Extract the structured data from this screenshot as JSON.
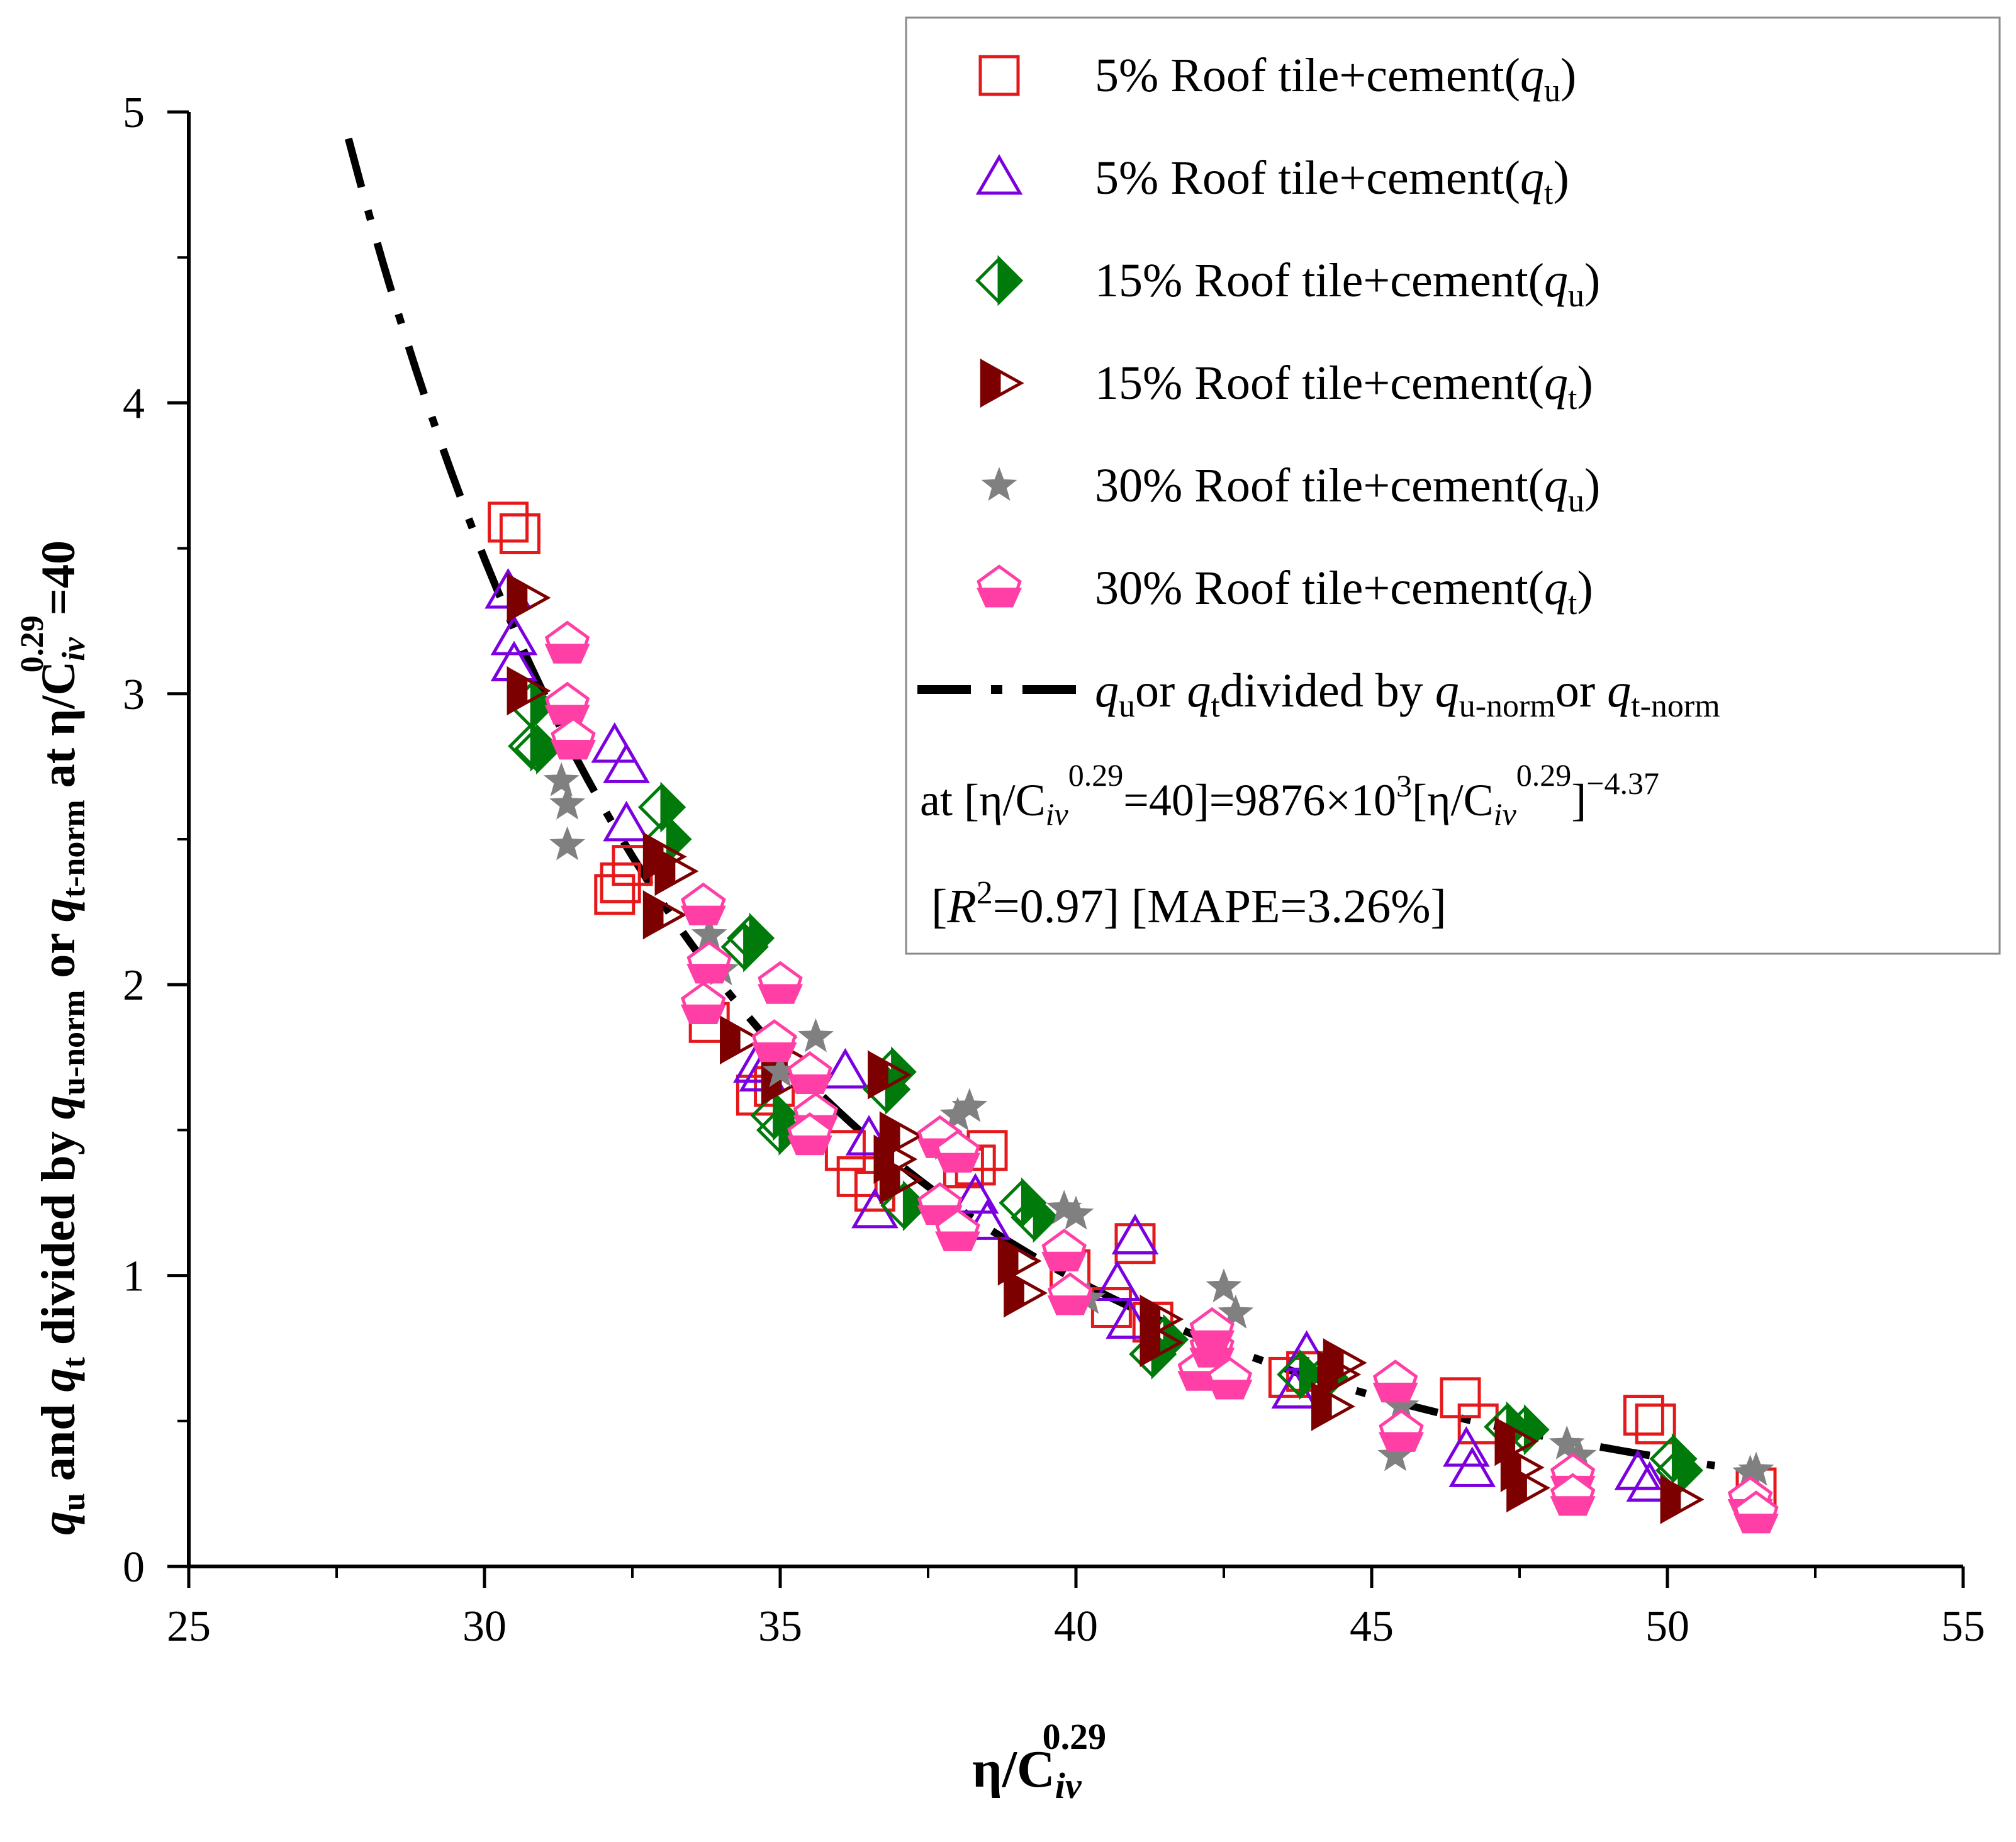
{
  "colors": {
    "s5u": "#e5191b",
    "s5t": "#7b00e0",
    "s15u": "#007a0a",
    "s15t": "#7d0000",
    "s30u": "#808080",
    "s30t": "#ff3fa6",
    "fit": "#000000"
  },
  "chart_data": {
    "type": "scatter",
    "xlabel": "η/C",
    "xlabel_sub": "iv",
    "xlabel_sup": "0.29",
    "ylabel": {
      "p1": "q",
      "p1_sub": "u",
      "p2": " and ",
      "p3": "q",
      "p3_sub": "t",
      "p4": " divided by ",
      "p5": "q",
      "p5_sub": "u-norm",
      "p6": " or ",
      "p7": "q",
      "p7_sub": "t-norm",
      "p8": " at η/C",
      "p8_sub": "iv",
      "p8_sup": "0.29",
      "p9": "=40"
    },
    "xlim": [
      25,
      55
    ],
    "ylim": [
      0,
      5
    ],
    "x_ticks": [
      "25",
      "30",
      "35",
      "40",
      "45",
      "50",
      "55"
    ],
    "y_ticks": [
      "0",
      "1",
      "2",
      "3",
      "4",
      "5"
    ],
    "legend": {
      "position": "top-right",
      "entries": [
        {
          "key": "s5u",
          "text": "5% Roof tile+cement(",
          "q": "q",
          "sub": "u",
          "close": ")"
        },
        {
          "key": "s5t",
          "text": "5% Roof tile+cement(",
          "q": "q",
          "sub": "t",
          "close": ")"
        },
        {
          "key": "s15u",
          "text": "15% Roof tile+cement(",
          "q": "q",
          "sub": "u",
          "close": ")"
        },
        {
          "key": "s15t",
          "text": "15% Roof tile+cement(",
          "q": "q",
          "sub": "t",
          "close": ")"
        },
        {
          "key": "s30u",
          "text": "30% Roof tile+cement(",
          "q": "q",
          "sub": "u",
          "close": ")"
        },
        {
          "key": "s30t",
          "text": "30% Roof tile+cement(",
          "q": "q",
          "sub": "t",
          "close": ")"
        }
      ],
      "fit_entry": {
        "a": "q",
        "a_sub": "u",
        "b": "or ",
        "c": "q",
        "c_sub": "t",
        "d": "divided by ",
        "e": "q",
        "e_sub": "u-norm",
        "f": "or ",
        "g": "q",
        "g_sub": "t-norm"
      },
      "equation": {
        "a": "at [η/C",
        "a_sub": "iv",
        "a_sup": "0.29",
        "b": "=40]=9876×10",
        "b_sup": "3",
        "c": "[η/C",
        "c_sub": "iv",
        "c_sup": "0.29",
        "d": "]",
        "d_sup": "−4.37"
      },
      "stats": {
        "a": "[",
        "R": "R",
        "R_sup": "2",
        "b": "=0.97] [MAPE=3.26%]"
      }
    },
    "fit": {
      "coefficient": 9876000,
      "exponent": -4.37,
      "x_range": [
        27.7,
        50.8
      ]
    },
    "series": [
      {
        "key": "s5u",
        "marker": "square",
        "name": "5% Roof tile+cement(qu)",
        "points": [
          [
            30.4,
            3.59
          ],
          [
            30.6,
            3.55
          ],
          [
            32.3,
            2.35
          ],
          [
            32.5,
            2.41
          ],
          [
            32.2,
            2.31
          ],
          [
            33.8,
            1.87
          ],
          [
            34.6,
            1.62
          ],
          [
            34.9,
            1.65
          ],
          [
            36.1,
            1.43
          ],
          [
            36.6,
            1.29
          ],
          [
            36.3,
            1.34
          ],
          [
            38.1,
            1.37
          ],
          [
            38.5,
            1.43
          ],
          [
            38.3,
            1.38
          ],
          [
            39.9,
            1.02
          ],
          [
            40.6,
            0.89
          ],
          [
            41.0,
            1.11
          ],
          [
            41.3,
            0.84
          ],
          [
            43.6,
            0.65
          ],
          [
            43.9,
            0.67
          ],
          [
            46.5,
            0.58
          ],
          [
            46.8,
            0.49
          ],
          [
            49.6,
            0.52
          ],
          [
            49.8,
            0.49
          ],
          [
            51.5,
            0.27
          ]
        ]
      },
      {
        "key": "s5t",
        "marker": "triangle",
        "name": "5% Roof tile+cement(qt)",
        "points": [
          [
            30.4,
            3.35
          ],
          [
            30.5,
            3.19
          ],
          [
            30.5,
            3.1
          ],
          [
            32.2,
            2.82
          ],
          [
            32.4,
            2.75
          ],
          [
            32.4,
            2.55
          ],
          [
            34.6,
            1.72
          ],
          [
            34.7,
            1.69
          ],
          [
            36.1,
            1.7
          ],
          [
            36.5,
            1.47
          ],
          [
            36.6,
            1.22
          ],
          [
            38.3,
            1.27
          ],
          [
            38.5,
            1.18
          ],
          [
            40.7,
            0.97
          ],
          [
            40.9,
            0.84
          ],
          [
            41.0,
            1.13
          ],
          [
            43.7,
            0.6
          ],
          [
            43.9,
            0.73
          ],
          [
            46.6,
            0.4
          ],
          [
            46.7,
            0.33
          ],
          [
            49.5,
            0.32
          ],
          [
            49.7,
            0.28
          ]
        ]
      },
      {
        "key": "s15u",
        "marker": "diamond",
        "name": "15% Roof tile+cement(qu)",
        "points": [
          [
            30.8,
            2.96
          ],
          [
            30.8,
            2.82
          ],
          [
            30.9,
            2.81
          ],
          [
            33.0,
            2.61
          ],
          [
            33.1,
            2.5
          ],
          [
            34.4,
            2.13
          ],
          [
            34.5,
            2.16
          ],
          [
            34.9,
            1.55
          ],
          [
            35.0,
            1.5
          ],
          [
            36.8,
            1.64
          ],
          [
            36.9,
            1.7
          ],
          [
            37.1,
            1.24
          ],
          [
            39.1,
            1.25
          ],
          [
            39.3,
            1.2
          ],
          [
            41.3,
            0.73
          ],
          [
            41.5,
            0.78
          ],
          [
            43.8,
            0.66
          ],
          [
            44.2,
            0.65
          ],
          [
            47.3,
            0.48
          ],
          [
            47.6,
            0.47
          ],
          [
            50.1,
            0.37
          ],
          [
            50.2,
            0.33
          ]
        ]
      },
      {
        "key": "s15t",
        "marker": "rtriangle",
        "name": "15% Roof tile+cement(qt)",
        "points": [
          [
            30.7,
            3.33
          ],
          [
            30.7,
            3.01
          ],
          [
            33.0,
            2.44
          ],
          [
            33.2,
            2.39
          ],
          [
            33.0,
            2.24
          ],
          [
            34.3,
            1.81
          ],
          [
            35.1,
            1.74
          ],
          [
            35.0,
            1.67
          ],
          [
            36.8,
            1.69
          ],
          [
            37.0,
            1.48
          ],
          [
            36.9,
            1.4
          ],
          [
            37.0,
            1.33
          ],
          [
            39.0,
            1.05
          ],
          [
            39.1,
            0.94
          ],
          [
            41.4,
            0.85
          ],
          [
            41.4,
            0.77
          ],
          [
            44.5,
            0.7
          ],
          [
            44.4,
            0.66
          ],
          [
            44.3,
            0.55
          ],
          [
            47.4,
            0.43
          ],
          [
            47.5,
            0.34
          ],
          [
            47.6,
            0.27
          ],
          [
            50.2,
            0.23
          ]
        ]
      },
      {
        "key": "s30u",
        "marker": "star",
        "name": "30% Roof tile+cement(qu)",
        "points": [
          [
            31.3,
            2.7
          ],
          [
            31.4,
            2.62
          ],
          [
            31.4,
            2.48
          ],
          [
            33.8,
            2.17
          ],
          [
            34.0,
            2.05
          ],
          [
            35.0,
            1.8
          ],
          [
            35.6,
            1.82
          ],
          [
            35.0,
            1.7
          ],
          [
            37.8,
            1.45
          ],
          [
            38.0,
            1.55
          ],
          [
            38.2,
            1.58
          ],
          [
            39.8,
            1.23
          ],
          [
            40.0,
            1.21
          ],
          [
            40.2,
            0.92
          ],
          [
            42.3,
            0.67
          ],
          [
            42.5,
            0.96
          ],
          [
            42.7,
            0.87
          ],
          [
            45.4,
            0.38
          ],
          [
            45.5,
            0.55
          ],
          [
            48.3,
            0.42
          ],
          [
            48.5,
            0.38
          ],
          [
            51.4,
            0.32
          ],
          [
            51.5,
            0.33
          ]
        ]
      },
      {
        "key": "s30t",
        "marker": "pentagon",
        "name": "30% Roof tile+cement(qt)",
        "points": [
          [
            31.4,
            3.17
          ],
          [
            31.4,
            2.96
          ],
          [
            31.5,
            2.84
          ],
          [
            33.7,
            2.27
          ],
          [
            33.8,
            2.07
          ],
          [
            33.7,
            1.93
          ],
          [
            35.0,
            2.0
          ],
          [
            34.9,
            1.8
          ],
          [
            35.5,
            1.69
          ],
          [
            35.6,
            1.55
          ],
          [
            35.5,
            1.48
          ],
          [
            37.7,
            1.47
          ],
          [
            38.0,
            1.42
          ],
          [
            37.7,
            1.24
          ],
          [
            38.0,
            1.15
          ],
          [
            39.8,
            1.08
          ],
          [
            39.9,
            0.93
          ],
          [
            42.1,
            0.67
          ],
          [
            42.3,
            0.75
          ],
          [
            42.3,
            0.81
          ],
          [
            42.6,
            0.64
          ],
          [
            45.4,
            0.63
          ],
          [
            45.5,
            0.46
          ],
          [
            48.4,
            0.31
          ],
          [
            48.4,
            0.24
          ],
          [
            51.4,
            0.23
          ],
          [
            51.5,
            0.18
          ]
        ]
      }
    ]
  }
}
